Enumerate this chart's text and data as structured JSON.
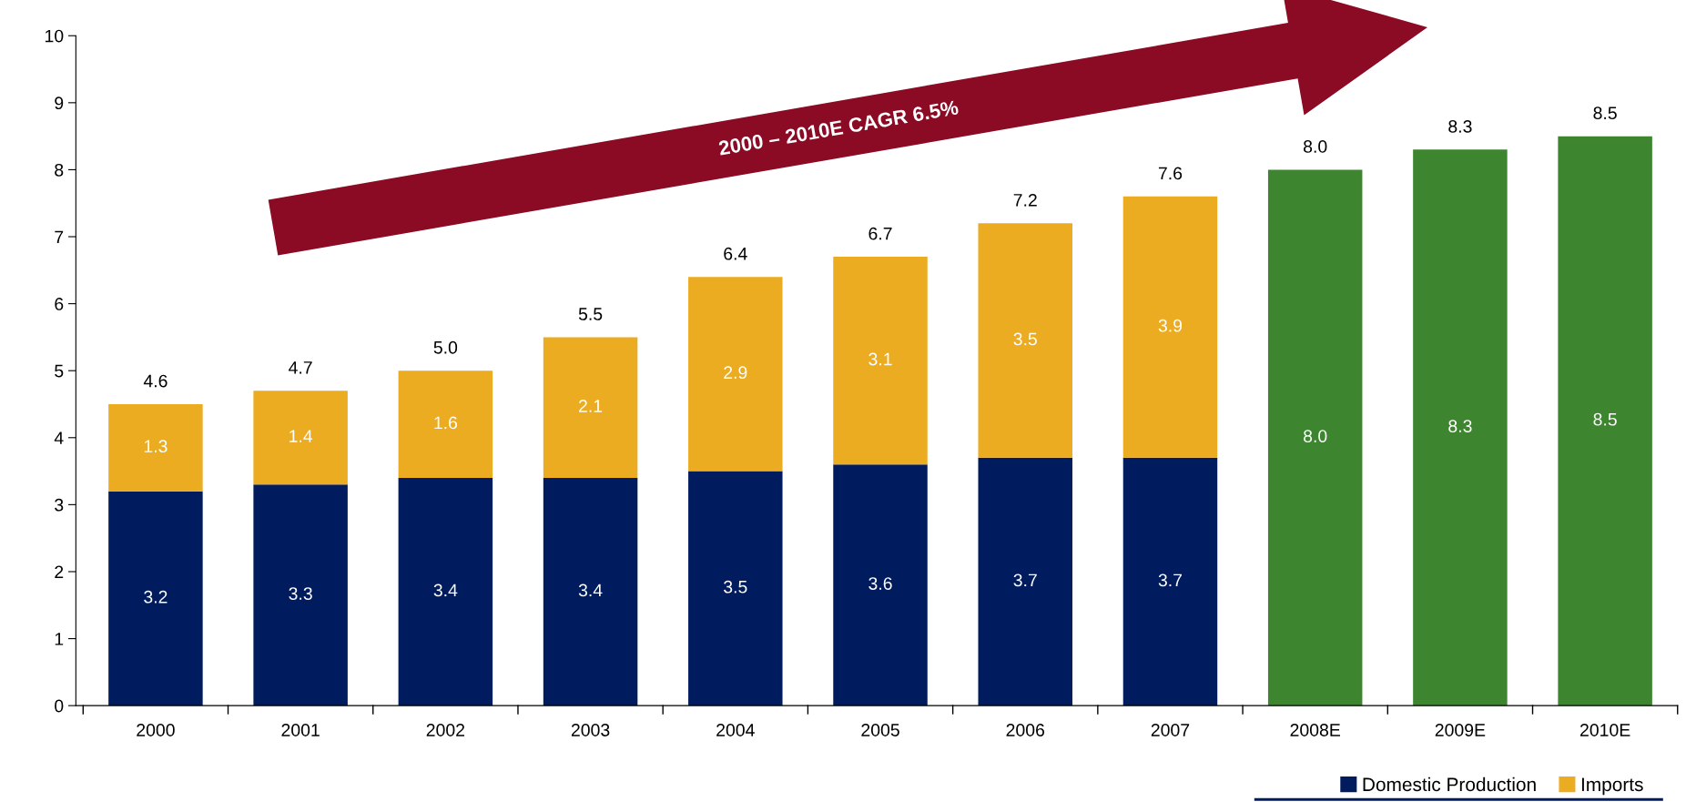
{
  "chart_data": {
    "type": "bar",
    "stacked": true,
    "categories": [
      "2000",
      "2001",
      "2002",
      "2003",
      "2004",
      "2005",
      "2006",
      "2007",
      "2008E",
      "2009E",
      "2010E"
    ],
    "series": [
      {
        "name": "Domestic Production",
        "color": "#001c5e",
        "values": [
          3.2,
          3.3,
          3.4,
          3.4,
          3.5,
          3.6,
          3.7,
          3.7,
          null,
          null,
          null
        ],
        "value_labels": [
          "3.2",
          "3.3",
          "3.4",
          "3.4",
          "3.5",
          "3.6",
          "3.7",
          "3.7",
          null,
          null,
          null
        ]
      },
      {
        "name": "Imports",
        "color": "#ebac21",
        "values": [
          1.3,
          1.4,
          1.6,
          2.1,
          2.9,
          3.1,
          3.5,
          3.9,
          null,
          null,
          null
        ],
        "value_labels": [
          "1.3",
          "1.4",
          "1.6",
          "2.1",
          "2.9",
          "3.1",
          "3.5",
          "3.9",
          null,
          null,
          null
        ]
      },
      {
        "color": "#3d862f",
        "values": [
          null,
          null,
          null,
          null,
          null,
          null,
          null,
          null,
          8.0,
          8.3,
          8.5
        ],
        "value_labels": [
          null,
          null,
          null,
          null,
          null,
          null,
          null,
          null,
          "8.0",
          "8.3",
          "8.5"
        ]
      }
    ],
    "totals": [
      "4.6",
      "4.7",
      "5.0",
      "5.5",
      "6.4",
      "6.7",
      "7.2",
      "7.6",
      "8.0",
      "8.3",
      "8.5"
    ],
    "ylim": [
      0,
      10
    ],
    "yticks": [
      0,
      1,
      2,
      3,
      4,
      5,
      6,
      7,
      8,
      9,
      10
    ],
    "grid": false,
    "legend": "bottom right",
    "annotations": [
      "2000 – 2010E CAGR 6.5%"
    ]
  }
}
